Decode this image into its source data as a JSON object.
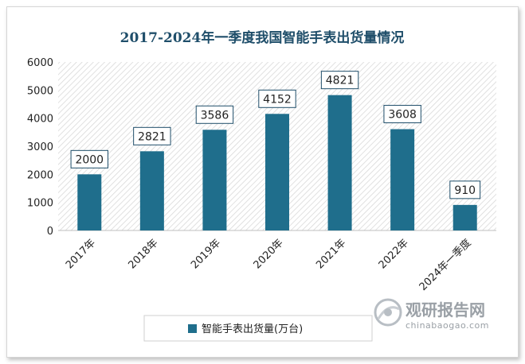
{
  "chart_data": {
    "type": "bar",
    "title": "2017-2024年一季度我国智能手表出货量情况",
    "categories": [
      "2017年",
      "2018年",
      "2019年",
      "2020年",
      "2021年",
      "2022年",
      "2024年一季度"
    ],
    "series": [
      {
        "name": "智能手表出货量(万台)",
        "values": [
          2000,
          2821,
          3586,
          4152,
          4821,
          3608,
          910
        ]
      }
    ],
    "yticks": [
      0,
      1000,
      2000,
      3000,
      4000,
      5000,
      6000
    ],
    "ylim": [
      0,
      6000
    ],
    "xlabel": "",
    "ylabel": "",
    "legend_position": "bottom",
    "bar_color": "#1f6e8c"
  },
  "watermark": {
    "brand": "观研报告网",
    "url": "chinabaogao.com"
  }
}
